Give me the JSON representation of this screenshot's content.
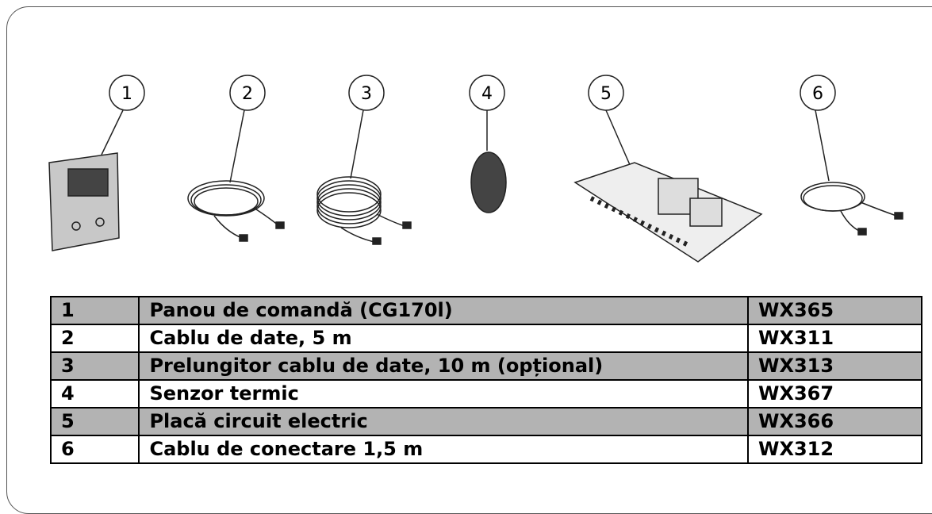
{
  "callouts": [
    "1",
    "2",
    "3",
    "4",
    "5",
    "6"
  ],
  "table": {
    "rows": [
      [
        "1",
        "Panou de comandă (CG170l)",
        "WX365"
      ],
      [
        "2",
        "Cablu de date, 5 m",
        "WX311"
      ],
      [
        "3",
        "Prelungitor cablu de date, 10 m (opțional)",
        "WX313"
      ],
      [
        "4",
        "Senzor termic",
        "WX367"
      ],
      [
        "5",
        "Placă circuit electric",
        "WX366"
      ],
      [
        "6",
        "Cablu de conectare 1,5 m",
        "WX312"
      ]
    ]
  }
}
